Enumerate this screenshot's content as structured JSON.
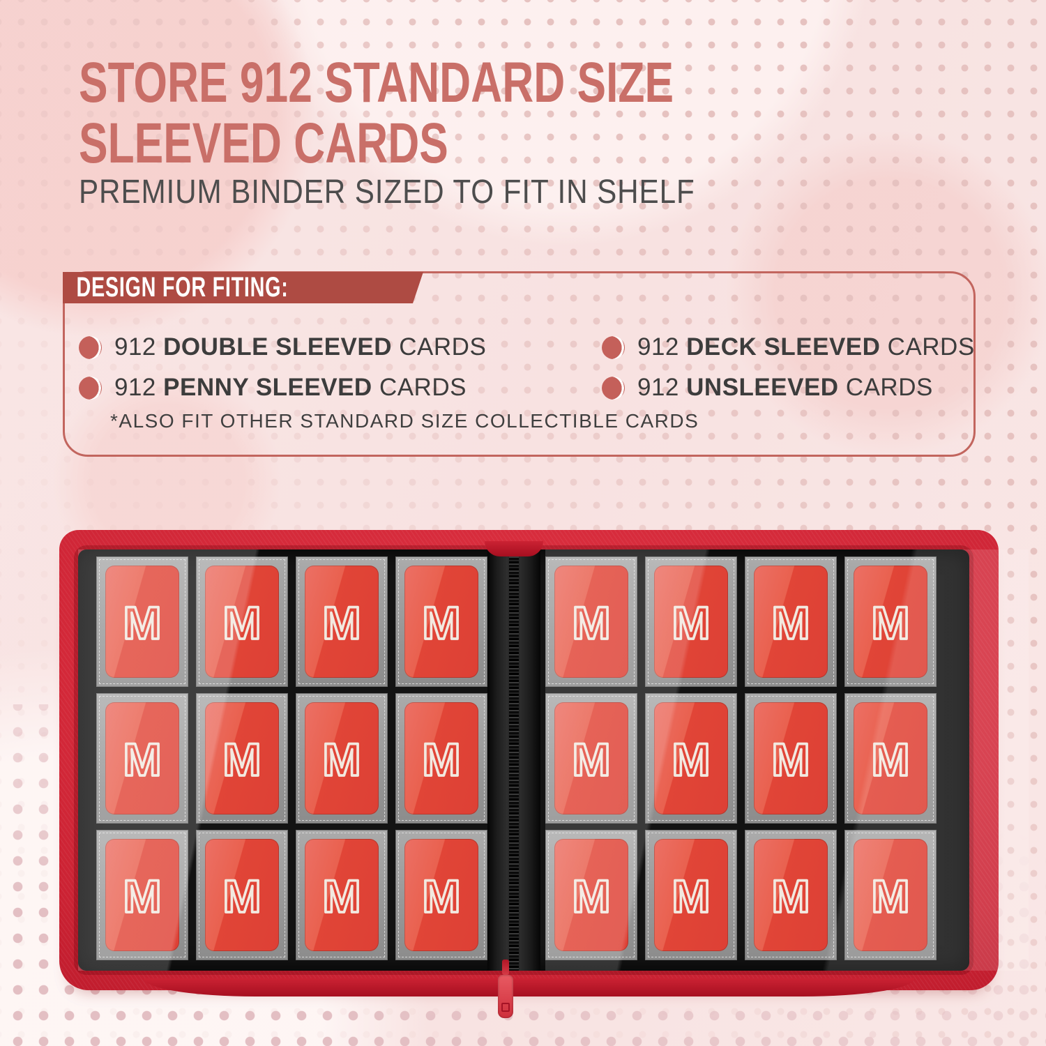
{
  "page": {
    "title_line1": "STORE 912 STANDARD SIZE",
    "title_line2": "SLEEVED CARDS",
    "subtitle": "PREMIUM BINDER SIZED TO FIT IN SHELF"
  },
  "fit_box": {
    "header": "DESIGN FOR FITING:",
    "items": [
      {
        "count": "912",
        "bold": "DOUBLE SLEEVED",
        "suffix": "CARDS"
      },
      {
        "count": "912",
        "bold": "DECK SLEEVED",
        "suffix": "CARDS"
      },
      {
        "count": "912",
        "bold": "PENNY SLEEVED",
        "suffix": "CARDS"
      },
      {
        "count": "912",
        "bold": "UNSLEEVED",
        "suffix": "CARDS"
      }
    ],
    "footnote": "*ALSO FIT OTHER STANDARD SIZE COLLECTIBLE CARDS"
  },
  "binder": {
    "card_letter": "M",
    "pages": 2,
    "columns_per_page": 4,
    "rows_per_page": 3,
    "pockets_per_page": 12
  },
  "colors": {
    "title": "#c96f68",
    "subtitle": "#4d4d4d",
    "banner_bg": "#ae4b43",
    "banner_text": "#ffffff",
    "box_border": "#c2655e",
    "bullet": "#c4605a",
    "list_text": "#3c3c3c",
    "footnote": "#3f3f3f",
    "dot_small": "#e6c2c0",
    "dot_big": "#e3bfc3",
    "binder_red": "#cb2233",
    "binder_red_light": "#e13343",
    "binder_red_dark": "#a60f20",
    "interior": "#131313",
    "pocket_gray": "#9c9c9c",
    "card_red": "#e14537",
    "m_stroke": "#f2e9e0",
    "pull_red": "#cf2f3c"
  }
}
